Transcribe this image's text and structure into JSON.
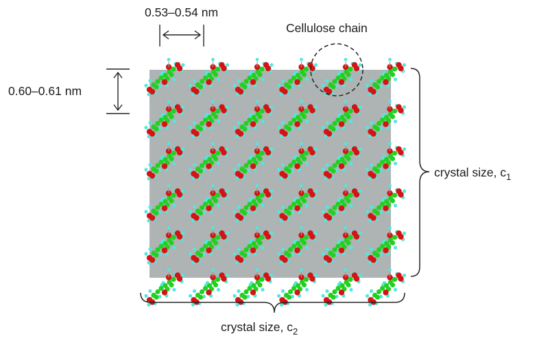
{
  "labels": {
    "chain_spacing": "0.53–0.54 nm",
    "layer_spacing": "0.60–0.61 nm",
    "cellulose_chain": "Cellulose chain",
    "crystal_c1_text": "crystal size, c",
    "crystal_c1_sub": "1",
    "crystal_c2_text": "crystal size, c",
    "crystal_c2_sub": "2"
  },
  "lattice": {
    "columns": 6,
    "rows": 6
  },
  "colors": {
    "crystal_fill": "#aeb3b3",
    "carbon": "#1fd21f",
    "oxygen": "#d41414",
    "hydrogen": "#55e6dc",
    "bond": "#9a9a9a",
    "line": "#222222"
  },
  "icons": [
    "double-arrow-horizontal-icon",
    "double-arrow-vertical-icon",
    "curly-brace-right-icon",
    "curly-brace-bottom-icon",
    "dashed-circle-icon"
  ]
}
